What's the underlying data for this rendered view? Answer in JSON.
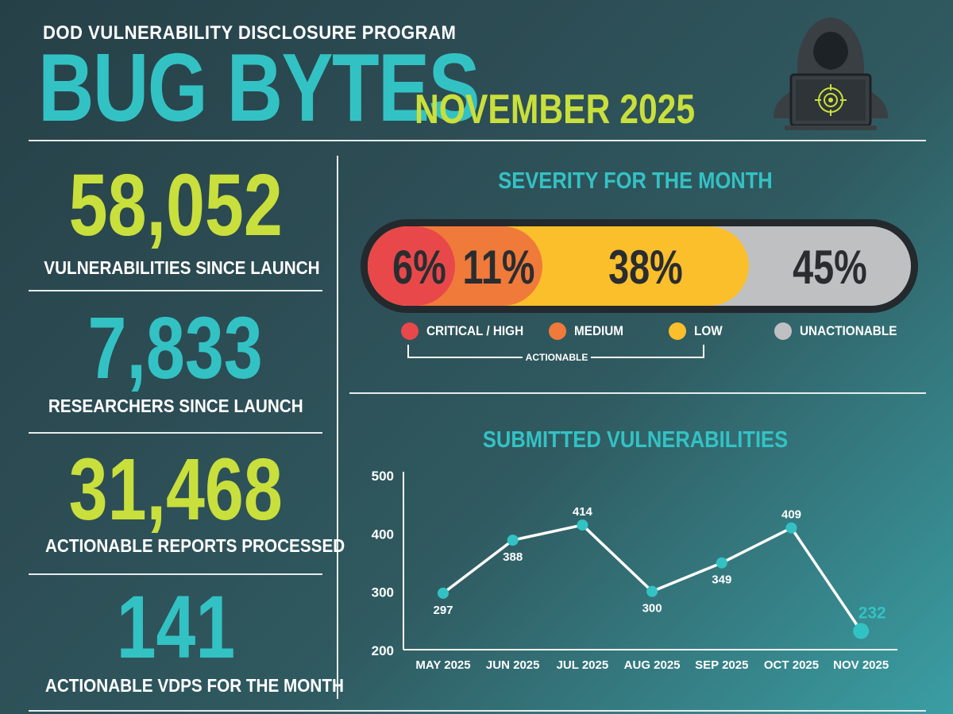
{
  "header": {
    "subtitle": "DOD VULNERABILITY DISCLOSURE PROGRAM",
    "title": "BUG BYTES",
    "month": "NOVEMBER 2025",
    "icon": "hacker-laptop-icon"
  },
  "stats": [
    {
      "value": "58,052",
      "label": "VULNERABILITIES SINCE LAUNCH"
    },
    {
      "value": "7,833",
      "label": "RESEARCHERS SINCE LAUNCH"
    },
    {
      "value": "31,468",
      "label": "ACTIONABLE REPORTS PROCESSED"
    },
    {
      "value": "141",
      "label": "ACTIONABLE VDPS FOR THE MONTH"
    }
  ],
  "colors": {
    "accent_teal": "#33c2c4",
    "accent_yellow": "#c9df3c",
    "critical": "#e8484a",
    "medium": "#f07a3a",
    "low": "#fbbf2c",
    "unactionable": "#bfc0c2"
  },
  "chart_data": [
    {
      "type": "bar",
      "title": "SEVERITY FOR THE MONTH",
      "categories": [
        "CRITICAL / HIGH",
        "MEDIUM",
        "LOW",
        "UNACTIONABLE"
      ],
      "values": [
        6,
        11,
        38,
        45
      ],
      "value_labels": [
        "6%",
        "11%",
        "38%",
        "45%"
      ],
      "colors": [
        "#e8484a",
        "#f07a3a",
        "#fbbf2c",
        "#bfc0c2"
      ],
      "bracket_label": "ACTIONABLE",
      "legend_position": "bottom"
    },
    {
      "type": "line",
      "title": "SUBMITTED VULNERABILITIES",
      "categories": [
        "MAY 2025",
        "JUN 2025",
        "JUL 2025",
        "AUG 2025",
        "SEP 2025",
        "OCT 2025",
        "NOV 2025"
      ],
      "values": [
        297,
        388,
        414,
        300,
        349,
        409,
        232
      ],
      "ylim": [
        200,
        500
      ],
      "yticks": [
        "200",
        "300",
        "400",
        "500"
      ],
      "grid": false
    }
  ]
}
